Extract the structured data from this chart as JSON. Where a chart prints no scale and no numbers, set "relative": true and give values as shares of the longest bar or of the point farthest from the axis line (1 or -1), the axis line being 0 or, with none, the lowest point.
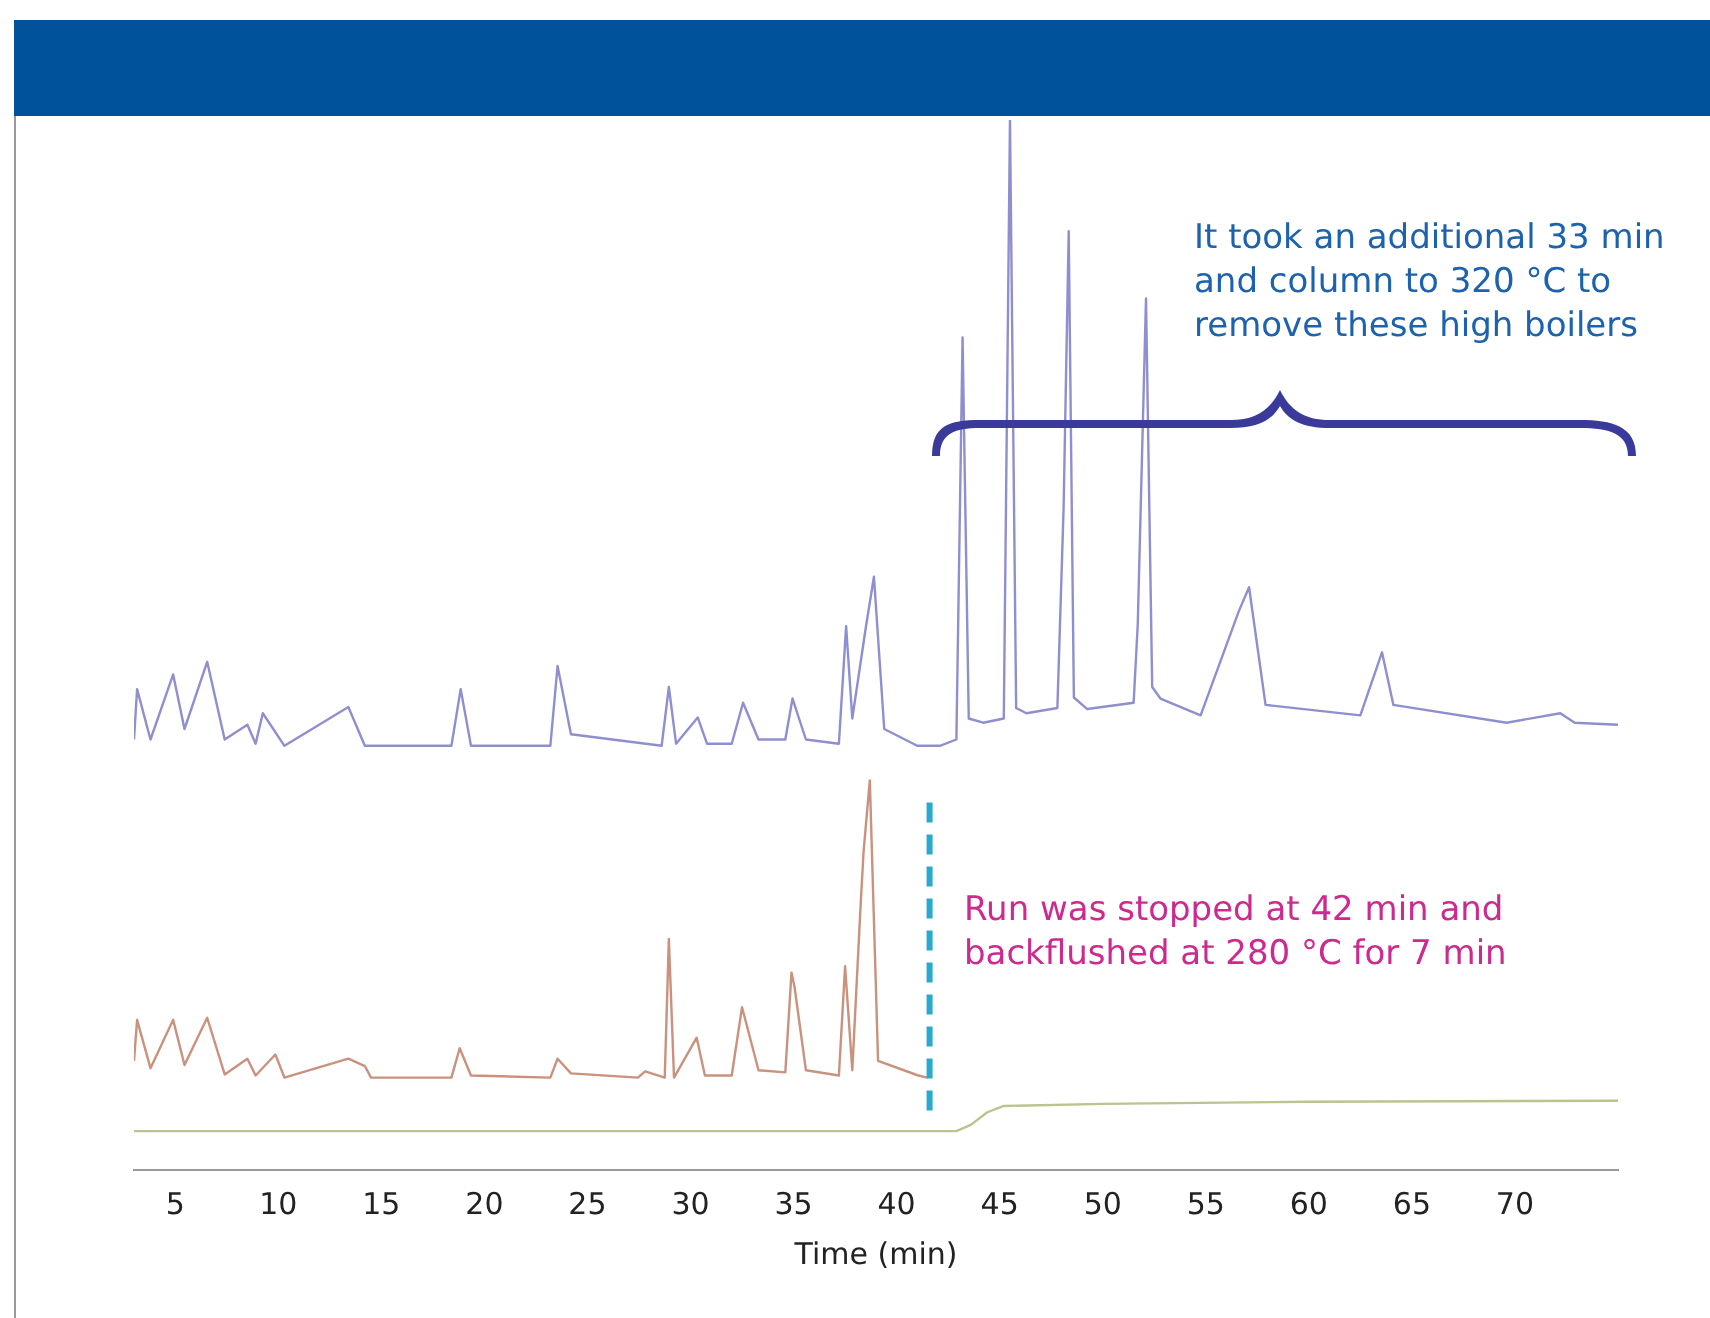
{
  "chart_data": {
    "type": "line",
    "relative": true,
    "xlabel": "Time (min)",
    "xlim": [
      3,
      75
    ],
    "xticks": [
      5,
      10,
      15,
      20,
      25,
      30,
      35,
      40,
      45,
      50,
      55,
      60,
      65,
      70
    ],
    "grid": false,
    "legend": false,
    "marker": "none",
    "line_style": "solid",
    "annotations": [
      "It took an additional 33 min\nand column to 320 °C to\nremove these high boilers",
      "Run was stopped at 42 min and\nbackflushed at 280 °C for 7 min"
    ],
    "ref_lines": [
      {
        "axis": "x",
        "value": 41.6,
        "color": "#29a9d0",
        "line_style": "dashed"
      }
    ],
    "series": [
      {
        "color": "#8f8fcf",
        "x": [
          3,
          3.15,
          3.8,
          4.9,
          5.45,
          6.55,
          7.4,
          8.5,
          8.9,
          9.25,
          10.3,
          13.4,
          14.2,
          18.4,
          18.85,
          19.35,
          23.2,
          23.55,
          24.2,
          28.6,
          28.95,
          29.3,
          30.35,
          30.8,
          32,
          32.55,
          33.3,
          34.6,
          34.95,
          35.6,
          37.2,
          37.55,
          37.85,
          38.5,
          38.9,
          39.4,
          41,
          42.1,
          42.9,
          43.2,
          43.5,
          44.2,
          45.2,
          45.5,
          45.8,
          46.3,
          47.8,
          48.1,
          48.35,
          48.6,
          49.25,
          51.5,
          51.7,
          52.1,
          52.4,
          52.8,
          54.75,
          56.6,
          57.1,
          57.9,
          62.5,
          63.55,
          64.1,
          69.6,
          72.2,
          72.9,
          75
        ],
        "values": [
          0.41,
          0.458,
          0.41,
          0.472,
          0.42,
          0.484,
          0.41,
          0.424,
          0.406,
          0.435,
          0.404,
          0.441,
          0.404,
          0.404,
          0.458,
          0.404,
          0.404,
          0.48,
          0.415,
          0.404,
          0.46,
          0.406,
          0.431,
          0.406,
          0.406,
          0.445,
          0.41,
          0.41,
          0.449,
          0.41,
          0.406,
          0.518,
          0.43,
          0.516,
          0.565,
          0.42,
          0.404,
          0.404,
          0.41,
          0.793,
          0.43,
          0.426,
          0.43,
          1.0,
          0.44,
          0.435,
          0.44,
          0.629,
          0.894,
          0.45,
          0.439,
          0.445,
          0.52,
          0.83,
          0.46,
          0.449,
          0.433,
          0.532,
          0.555,
          0.443,
          0.433,
          0.493,
          0.443,
          0.426,
          0.435,
          0.426,
          0.424
        ]
      },
      {
        "color": "#c9927e",
        "x": [
          3,
          3.15,
          3.8,
          4.9,
          5.45,
          6.55,
          7.4,
          8.5,
          8.9,
          9.86,
          10.3,
          13.4,
          14.2,
          14.5,
          18.4,
          18.8,
          19.35,
          23.2,
          23.55,
          24.2,
          27.45,
          27.8,
          28.75,
          28.95,
          29.2,
          30.3,
          30.7,
          32,
          32.5,
          33.3,
          34.6,
          34.9,
          35.05,
          35.6,
          37.2,
          37.5,
          37.85,
          38.25,
          38.4,
          38.7,
          39.1,
          41.05,
          41.5
        ],
        "values": [
          0.104,
          0.143,
          0.097,
          0.143,
          0.1,
          0.145,
          0.091,
          0.106,
          0.09,
          0.11,
          0.088,
          0.106,
          0.099,
          0.088,
          0.088,
          0.116,
          0.09,
          0.088,
          0.106,
          0.092,
          0.088,
          0.094,
          0.088,
          0.22,
          0.088,
          0.126,
          0.09,
          0.09,
          0.155,
          0.095,
          0.093,
          0.188,
          0.174,
          0.095,
          0.09,
          0.194,
          0.095,
          0.251,
          0.304,
          0.371,
          0.104,
          0.09,
          0.088
        ]
      },
      {
        "color": "#b9c48e",
        "x": [
          3,
          42.9,
          43.6,
          44.4,
          45.2,
          50,
          60,
          75
        ],
        "values": [
          0.037,
          0.037,
          0.043,
          0.055,
          0.061,
          0.063,
          0.065,
          0.066
        ]
      }
    ]
  }
}
